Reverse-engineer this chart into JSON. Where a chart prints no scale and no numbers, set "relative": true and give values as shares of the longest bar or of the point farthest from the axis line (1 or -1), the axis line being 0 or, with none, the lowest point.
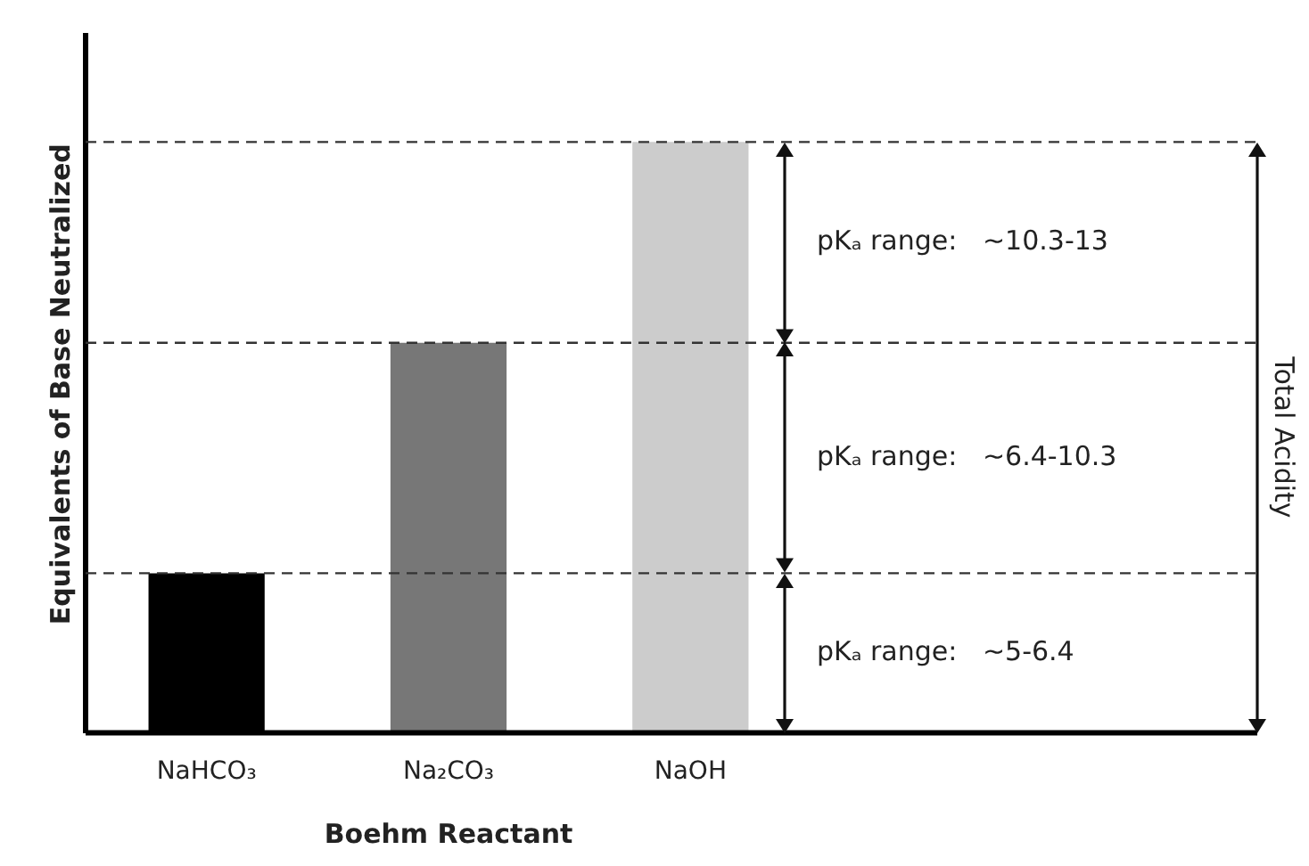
{
  "chart_data": {
    "type": "bar",
    "relative": true,
    "categories": [
      "NaHCO₃",
      "Na₂CO₃",
      "NaOH"
    ],
    "values": [
      0.27,
      0.66,
      1
    ],
    "colors": [
      "#000000",
      "#777777",
      "#cccccc"
    ],
    "xlabel": "Boehm Reactant",
    "ylabel": "Equivalents of Base Neutralized",
    "ref_lines": [
      {
        "axis": "y",
        "value": 0.27,
        "color": "#333333",
        "line_style": "dashed"
      },
      {
        "axis": "y",
        "value": 0.66,
        "color": "#333333",
        "line_style": "dashed"
      },
      {
        "axis": "y",
        "value": 1,
        "color": "#333333",
        "line_style": "dashed"
      }
    ],
    "annotations": [
      "pKₐ range:   ~10.3-13",
      "pKₐ range:   ~6.4-10.3",
      "pKₐ range:   ~5-6.4",
      "Total Acidity"
    ],
    "grid": false,
    "legend": false
  }
}
